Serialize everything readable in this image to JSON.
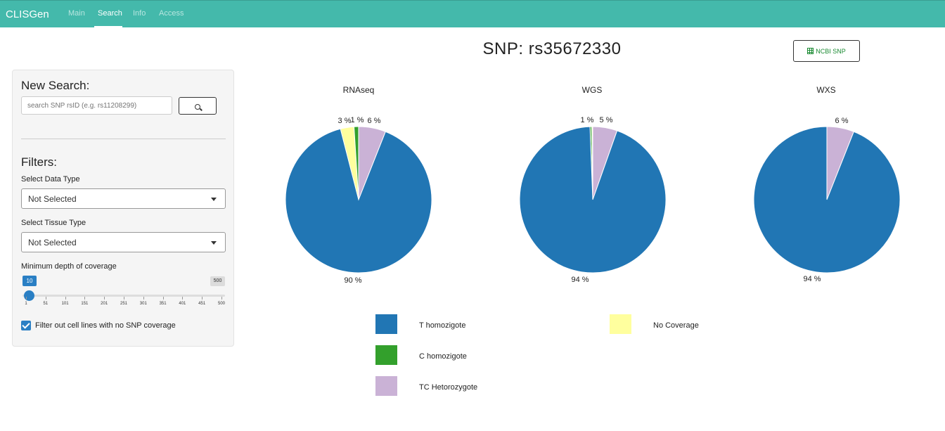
{
  "navbar": {
    "brand": "CLISGen",
    "links": [
      {
        "label": "Main",
        "active": false
      },
      {
        "label": "Search",
        "active": true
      },
      {
        "label": "Info",
        "active": false
      },
      {
        "label": "Access",
        "active": false
      }
    ],
    "color": "#44b9ab"
  },
  "page": {
    "title": "SNP: rs35672330",
    "ncbi_button": "NCBI SNP"
  },
  "sidebar": {
    "new_search_heading": "New Search:",
    "search_placeholder": "search SNP rsID (e.g. rs11208299)",
    "filters_heading": "Filters:",
    "data_type_label": "Select Data Type",
    "data_type_value": "Not Selected",
    "tissue_type_label": "Select Tissue Type",
    "tissue_type_value": "Not Selected",
    "coverage_label": "Minimum depth of coverage",
    "coverage_value": "10",
    "coverage_max": "500",
    "coverage_ticks": [
      "1",
      "51",
      "101",
      "151",
      "201",
      "251",
      "301",
      "351",
      "401",
      "451",
      "500"
    ],
    "checkbox_label": "Filter out cell lines with no SNP coverage",
    "checkbox_checked": true
  },
  "chart_data": [
    {
      "type": "pie",
      "title": "RNAseq",
      "slices": [
        {
          "category": "T homozigote",
          "value": 90,
          "label": "90 %"
        },
        {
          "category": "No Coverage",
          "value": 3,
          "label": "3 %"
        },
        {
          "category": "C homozigote",
          "value": 1,
          "label": "1 %"
        },
        {
          "category": "TC Hetorozygote",
          "value": 6,
          "label": "6 %"
        }
      ]
    },
    {
      "type": "pie",
      "title": "WGS",
      "slices": [
        {
          "category": "T homozigote",
          "value": 94,
          "label": "94 %"
        },
        {
          "category": "C homozigote",
          "value": 0.4,
          "label": ""
        },
        {
          "category": "No Coverage",
          "value": 0.2,
          "label": ""
        },
        {
          "category": "TC Hetorozygote",
          "value": 5.4,
          "label": "5 %"
        }
      ],
      "extra_label": "1 %"
    },
    {
      "type": "pie",
      "title": "WXS",
      "slices": [
        {
          "category": "T homozigote",
          "value": 94,
          "label": "94 %"
        },
        {
          "category": "TC Hetorozygote",
          "value": 6,
          "label": "6 %"
        }
      ]
    }
  ],
  "legend": [
    {
      "label": "T homozigote",
      "color": "#2176b4"
    },
    {
      "label": "No Coverage",
      "color": "#ffff9e"
    },
    {
      "label": "C homozigote",
      "color": "#33a02c"
    },
    {
      "label": "TC Hetorozygote",
      "color": "#cab2d6"
    }
  ]
}
